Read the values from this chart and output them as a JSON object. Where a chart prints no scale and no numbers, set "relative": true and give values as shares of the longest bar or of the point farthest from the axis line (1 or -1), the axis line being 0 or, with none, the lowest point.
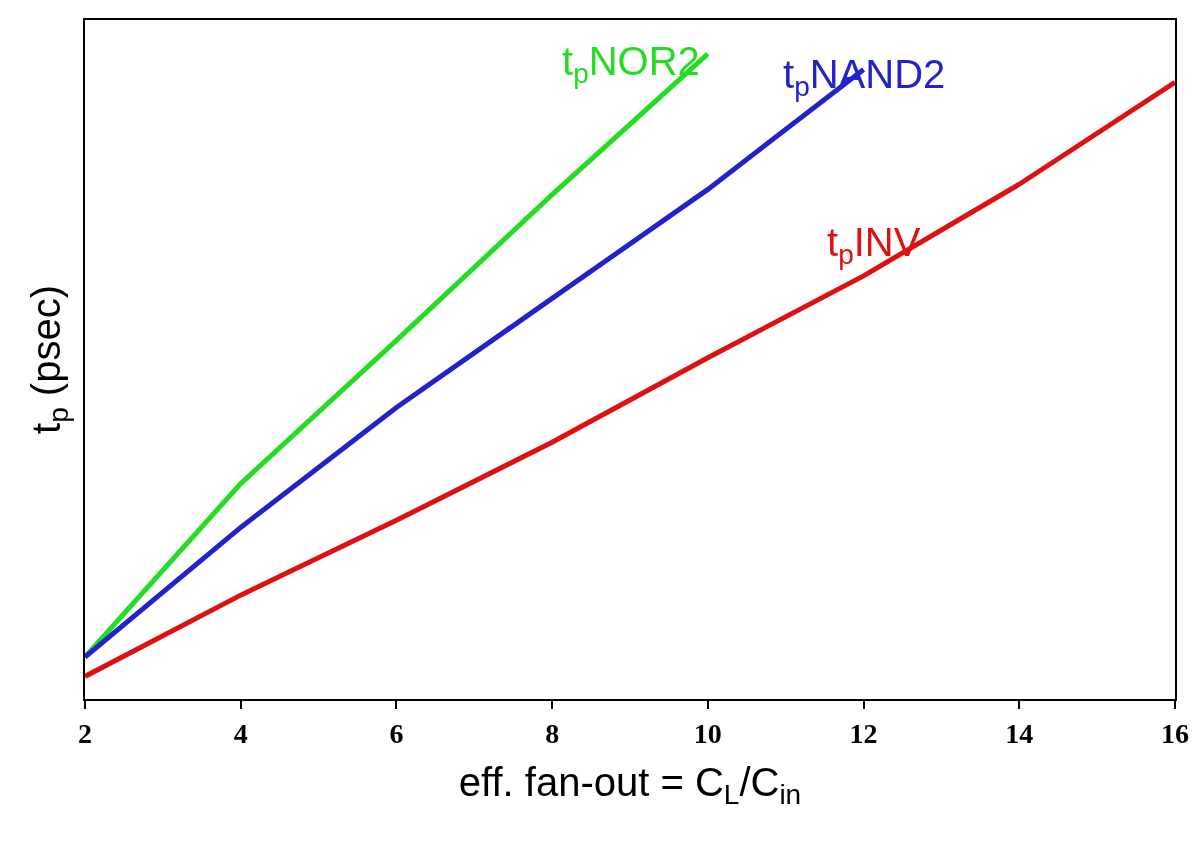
{
  "chart_data": {
    "type": "line",
    "relative": true,
    "xlabel": "eff. fan-out = C$_{L}$/C$_{in}$",
    "ylabel": "t$_{p}$ (psec)",
    "xlim": [
      2,
      16
    ],
    "xticks": [
      2,
      4,
      6,
      8,
      10,
      12,
      14,
      16
    ],
    "grid": false,
    "legend": false,
    "marker": "none",
    "line_style": "solid",
    "series": [
      {
        "name": "t$_{p}$NOR2",
        "color": "#22dd22",
        "x": [
          2,
          4,
          6,
          8,
          10
        ],
        "values": [
          0.065,
          0.334,
          0.556,
          0.782,
          1
        ]
      },
      {
        "name": "t$_{p}$NAND2",
        "color": "#2222cc",
        "x": [
          2,
          4,
          6,
          8,
          10,
          12
        ],
        "values": [
          0.065,
          0.266,
          0.452,
          0.621,
          0.79,
          0.976
        ]
      },
      {
        "name": "t$_{p}$INV",
        "color": "#dd1111",
        "x": [
          2,
          4,
          6,
          8,
          10,
          12,
          14,
          16
        ],
        "values": [
          0.035,
          0.161,
          0.277,
          0.398,
          0.529,
          0.656,
          0.798,
          0.956
        ]
      }
    ]
  }
}
